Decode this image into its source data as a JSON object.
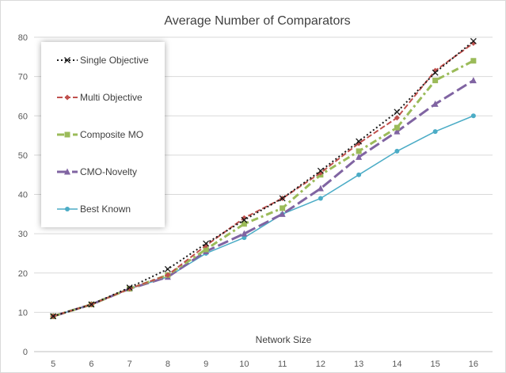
{
  "chart_data": {
    "type": "line",
    "title": "Average Number of Comparators",
    "xlabel": "Network Size",
    "ylabel": "",
    "categories": [
      "5",
      "6",
      "7",
      "8",
      "9",
      "10",
      "11",
      "12",
      "13",
      "14",
      "15",
      "16"
    ],
    "ylim": [
      0,
      80
    ],
    "yticks": [
      0,
      10,
      20,
      30,
      40,
      50,
      60,
      70,
      80
    ],
    "grid": "horizontal",
    "legend_position": "top-left",
    "series": [
      {
        "name": "Single Objective",
        "color": "#1a1a1a",
        "line_style": "dotted",
        "marker": "x",
        "values": [
          9,
          12,
          16.3,
          21,
          27.5,
          33.5,
          39,
          46,
          53.5,
          61,
          71,
          79
        ]
      },
      {
        "name": "Multi Objective",
        "color": "#c0504d",
        "line_style": "dashed",
        "marker": "diamond",
        "values": [
          9,
          12,
          16,
          19.5,
          27,
          34,
          39,
          45.5,
          53,
          59.5,
          71.5,
          78.5
        ]
      },
      {
        "name": "Composite MO",
        "color": "#9bbb59",
        "line_style": "dash-dot",
        "marker": "square",
        "values": [
          9,
          12,
          16,
          19.5,
          26,
          32.5,
          36.5,
          45,
          51,
          57,
          69,
          74
        ]
      },
      {
        "name": "CMO-Novelty",
        "color": "#8064a2",
        "line_style": "long-dash",
        "marker": "triangle",
        "values": [
          9,
          12,
          16,
          19,
          25.5,
          30,
          35,
          41.5,
          49.5,
          56,
          63,
          69
        ]
      },
      {
        "name": "Best Known",
        "color": "#4bacc6",
        "line_style": "solid",
        "marker": "circle",
        "values": [
          9,
          12,
          16,
          19,
          25,
          29,
          35,
          39,
          45,
          51,
          56,
          60
        ]
      }
    ]
  }
}
